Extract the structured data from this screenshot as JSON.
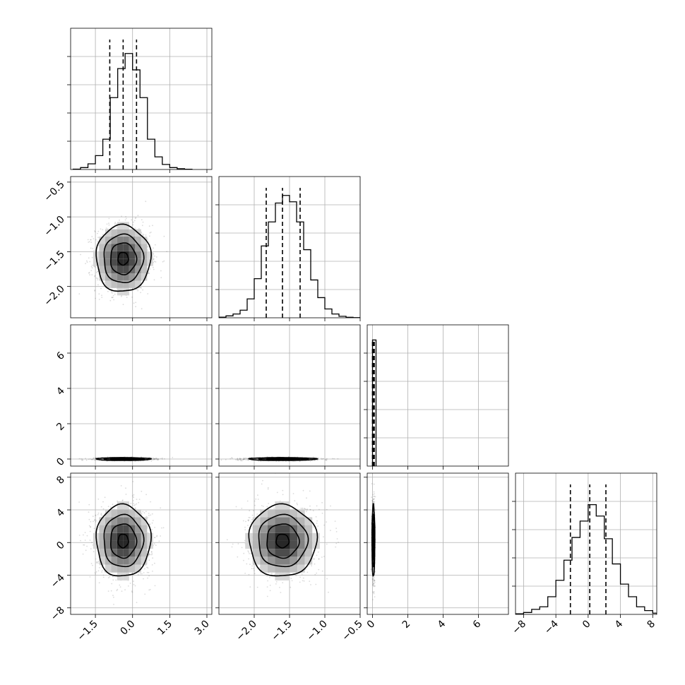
{
  "chart_data": {
    "type": "corner",
    "parameters": 4,
    "grid": true,
    "panels": {
      "p1_hist": {
        "xlim": [
          -2.5,
          3.2
        ],
        "bins_x": [
          -2.4,
          -2.1,
          -1.8,
          -1.5,
          -1.2,
          -0.9,
          -0.6,
          -0.3,
          0.0,
          0.3,
          0.6,
          0.9,
          1.2,
          1.5,
          1.8,
          2.1,
          2.4
        ],
        "counts": [
          0.3,
          1.5,
          4.5,
          11,
          24,
          57,
          80,
          92,
          79,
          57,
          24,
          10,
          4,
          1.5,
          0.6,
          0.2
        ],
        "ymax": 100,
        "quantiles": [
          -0.92,
          -0.38,
          0.16
        ]
      },
      "p2_hist": {
        "xlim": [
          -2.5,
          -0.5
        ],
        "bins_x": [
          -2.5,
          -2.4,
          -2.3,
          -2.2,
          -2.1,
          -2.0,
          -1.9,
          -1.8,
          -1.7,
          -1.6,
          -1.5,
          -1.4,
          -1.3,
          -1.2,
          -1.1,
          -1.0,
          -0.9,
          -0.8,
          -0.7,
          -0.6,
          -0.5
        ],
        "counts": [
          0.5,
          1.5,
          3,
          6,
          15,
          31,
          57,
          76,
          91,
          97,
          92,
          76,
          54,
          30,
          16,
          7,
          3,
          1.2,
          0.4,
          0.1
        ],
        "ymax": 100,
        "quantiles": [
          -1.83,
          -1.6,
          -1.35
        ]
      },
      "p3_hist": {
        "xlim": [
          -0.3,
          7.7
        ],
        "quantiles": [
          0.0,
          0.05,
          0.1
        ],
        "spike_bar_x": [
          0.0,
          0.2
        ],
        "ymax": 100
      },
      "p4_hist": {
        "xlim": [
          -9,
          8.5
        ],
        "bins_x": [
          -9.0,
          -8.0,
          -7.0,
          -6.0,
          -5.0,
          -4.0,
          -3.0,
          -2.0,
          -1.0,
          0.0,
          1.0,
          2.0,
          3.0,
          4.0,
          5.0,
          6.0,
          7.0,
          8.0,
          8.5
        ],
        "counts": [
          0.5,
          1.5,
          4,
          6,
          14,
          27,
          43,
          61,
          74,
          87,
          78,
          60,
          40,
          24,
          14,
          6,
          3,
          1
        ],
        "ymax": 100,
        "quantiles": [
          -2.2,
          0.2,
          2.2
        ]
      },
      "p2_vs_p1": {
        "xlim": [
          -2.5,
          3.2
        ],
        "ylim": [
          -2.45,
          -0.42
        ],
        "center": [
          -0.38,
          -1.6
        ],
        "sigma": [
          0.55,
          0.24
        ]
      },
      "p3_vs_p1": {
        "xlim": [
          -2.5,
          3.2
        ],
        "ylim": [
          -0.4,
          7.6
        ],
        "center": [
          -0.38,
          0.0
        ],
        "sigma": [
          0.55,
          0.04
        ]
      },
      "p3_vs_p2": {
        "xlim": [
          -2.5,
          -0.5
        ],
        "ylim": [
          -0.4,
          7.6
        ],
        "center": [
          -1.6,
          0.0
        ],
        "sigma": [
          0.24,
          0.04
        ]
      },
      "p4_vs_p1": {
        "xlim": [
          -2.5,
          3.2
        ],
        "ylim": [
          -8.8,
          8.5
        ],
        "center": [
          -0.38,
          0.2
        ],
        "sigma": [
          0.55,
          2.2
        ]
      },
      "p4_vs_p2": {
        "xlim": [
          -2.5,
          -0.5
        ],
        "ylim": [
          -8.8,
          8.5
        ],
        "center": [
          -1.6,
          0.2
        ],
        "sigma": [
          0.24,
          2.2
        ]
      },
      "p4_vs_p3": {
        "xlim": [
          -0.3,
          7.7
        ],
        "ylim": [
          -8.8,
          8.5
        ],
        "center": [
          0.05,
          0.2
        ],
        "sigma": [
          0.04,
          2.2
        ]
      }
    },
    "ticks": {
      "p1_x": {
        "values": [
          -1.5,
          0.0,
          1.5,
          3.0
        ],
        "labels": [
          "−1.5",
          "0.0",
          "1.5",
          "3.0"
        ]
      },
      "p2_x": {
        "values": [
          -2.0,
          -1.5,
          -1.0,
          -0.5
        ],
        "labels": [
          "−2.0",
          "−1.5",
          "−1.0",
          "−0.5"
        ]
      },
      "p3_x": {
        "values": [
          0,
          2,
          4,
          6
        ],
        "labels": [
          "0",
          "2",
          "4",
          "6"
        ]
      },
      "p4_x": {
        "values": [
          -8,
          -4,
          0,
          4,
          8
        ],
        "labels": [
          "−8",
          "−4",
          "0",
          "4",
          "8"
        ]
      },
      "p2_y": {
        "values": [
          -0.5,
          -1.0,
          -1.5,
          -2.0
        ],
        "labels": [
          "−0.5",
          "−1.0",
          "−1.5",
          "−2.0"
        ]
      },
      "p3_y": {
        "values": [
          6,
          4,
          2,
          0
        ],
        "labels": [
          "6",
          "4",
          "2",
          "0"
        ]
      },
      "p4_y": {
        "values": [
          8,
          4,
          0,
          -4,
          -8
        ],
        "labels": [
          "8",
          "4",
          "0",
          "−4",
          "−8"
        ]
      },
      "hist_y_count": 4
    }
  }
}
